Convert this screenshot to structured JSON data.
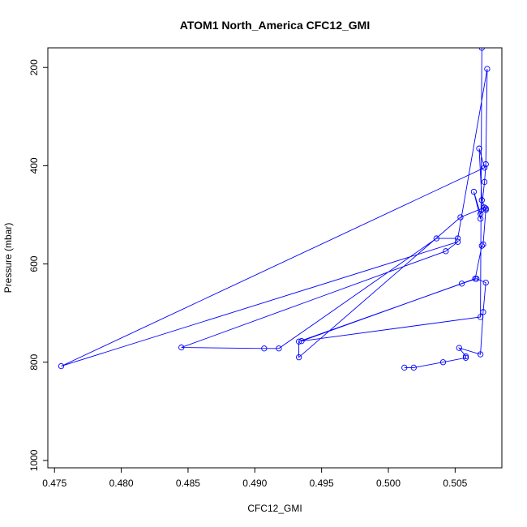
{
  "chart_data": {
    "type": "line",
    "title": "ATOM1 North_America CFC12_GMI",
    "xlabel": "CFC12_GMI",
    "ylabel": "Pressure (mbar)",
    "xlim": [
      0.4745,
      0.5085
    ],
    "ylim": [
      1015,
      160
    ],
    "y_reversed": true,
    "grid": false,
    "line_color": "#0000ff",
    "marker": "open-circle",
    "x_ticks": [
      {
        "value": 0.475,
        "label": "0.475"
      },
      {
        "value": 0.48,
        "label": "0.480"
      },
      {
        "value": 0.485,
        "label": "0.485"
      },
      {
        "value": 0.49,
        "label": "0.490"
      },
      {
        "value": 0.495,
        "label": "0.495"
      },
      {
        "value": 0.5,
        "label": "0.500"
      },
      {
        "value": 0.505,
        "label": "0.505"
      }
    ],
    "y_ticks": [
      {
        "value": 200,
        "label": "200"
      },
      {
        "value": 400,
        "label": "400"
      },
      {
        "value": 600,
        "label": "600"
      },
      {
        "value": 800,
        "label": "800"
      },
      {
        "value": 1000,
        "label": "1000"
      }
    ],
    "series": [
      {
        "x": [
          0.5012,
          0.5019,
          0.5041,
          0.5058,
          0.5058,
          0.5053,
          0.5069,
          0.5071,
          0.5073,
          0.5066,
          0.5055,
          0.4933,
          0.4933,
          0.5054,
          0.5072,
          0.5073,
          0.5069,
          0.5064,
          0.5069,
          0.5072,
          0.5073,
          0.5074,
          0.5052,
          0.5036,
          0.4918,
          0.4907,
          0.4845,
          0.5043,
          0.5052,
          0.4755,
          0.5072,
          0.5068,
          0.507,
          0.5073,
          0.5071,
          0.507,
          0.5065,
          0.4935,
          0.5069,
          0.507,
          0.5073
        ],
        "y": [
          811,
          811,
          800,
          791,
          788,
          771,
          784,
          698,
          638,
          630,
          640,
          758,
          790,
          505,
          485,
          487,
          498,
          453,
          508,
          433,
          397,
          203,
          548,
          548,
          772,
          772,
          770,
          574,
          555,
          808,
          404,
          365,
          470,
          490,
          560,
          563,
          630,
          757,
          708,
          160,
          150
        ]
      }
    ]
  }
}
